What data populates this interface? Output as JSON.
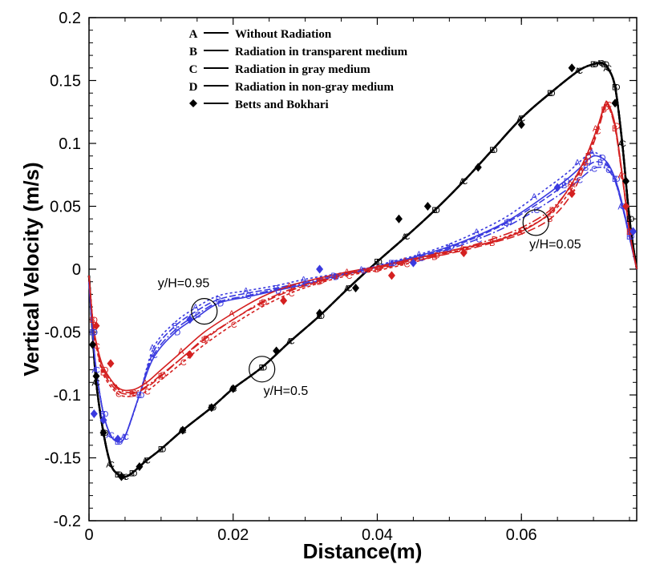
{
  "chart_data": {
    "type": "line",
    "title": "",
    "xlabel": "Distance(m)",
    "ylabel": "Vertical Velocity (m/s)",
    "xlim": [
      0,
      0.076
    ],
    "ylim": [
      -0.2,
      0.2
    ],
    "x_ticks": [
      0,
      0.02,
      0.04,
      0.06
    ],
    "x_tick_labels": [
      "0",
      "0.02",
      "0.04",
      "0.06"
    ],
    "y_ticks": [
      -0.2,
      -0.15,
      -0.1,
      -0.05,
      0,
      0.05,
      0.1,
      0.15,
      0.2
    ],
    "y_tick_labels": [
      "-0.2",
      "-0.15",
      "-0.1",
      "-0.05",
      "0",
      "0.05",
      "0.1",
      "0.15",
      "0.2"
    ],
    "grid": false,
    "legend": {
      "position": "top",
      "entries": [
        {
          "symbol": "A",
          "label": "Without Radiation"
        },
        {
          "symbol": "B",
          "label": "Radiation in transparent medium"
        },
        {
          "symbol": "C",
          "label": "Radiation in gray medium"
        },
        {
          "symbol": "D",
          "label": "Radiation in non-gray medium"
        },
        {
          "symbol": "◆",
          "label": "Betts and Bokhari"
        }
      ]
    },
    "annotations": [
      {
        "text": "y/H=0.95",
        "x": 0.016,
        "y": -0.0335
      },
      {
        "text": "y/H=0.5",
        "x": 0.024,
        "y": -0.0795
      },
      {
        "text": "y/H=0.05",
        "x": 0.062,
        "y": 0.037
      }
    ],
    "series": [
      {
        "name": "y/H=0.5 A",
        "group": "y/H=0.5",
        "marker": "A",
        "color": "#000000",
        "dash": "",
        "x": [
          0,
          0.0005,
          0.001,
          0.002,
          0.003,
          0.004,
          0.005,
          0.006,
          0.008,
          0.01,
          0.013,
          0.017,
          0.02,
          0.024,
          0.028,
          0.032,
          0.036,
          0.04,
          0.044,
          0.048,
          0.052,
          0.056,
          0.06,
          0.064,
          0.068,
          0.07,
          0.071,
          0.0715,
          0.072,
          0.073,
          0.074,
          0.075,
          0.076
        ],
        "y": [
          -0.005,
          -0.05,
          -0.09,
          -0.13,
          -0.155,
          -0.163,
          -0.165,
          -0.162,
          -0.152,
          -0.143,
          -0.128,
          -0.11,
          -0.095,
          -0.078,
          -0.057,
          -0.037,
          -0.015,
          0.006,
          0.026,
          0.047,
          0.07,
          0.095,
          0.12,
          0.14,
          0.158,
          0.163,
          0.164,
          0.163,
          0.16,
          0.145,
          0.1,
          0.04,
          0
        ]
      },
      {
        "name": "y/H=0.5 B",
        "group": "y/H=0.5",
        "marker": "B",
        "color": "#000000",
        "dash": "10,4",
        "x": [
          0,
          0.0005,
          0.001,
          0.002,
          0.003,
          0.004,
          0.005,
          0.006,
          0.008,
          0.01,
          0.013,
          0.017,
          0.02,
          0.024,
          0.028,
          0.032,
          0.036,
          0.04,
          0.044,
          0.048,
          0.052,
          0.056,
          0.06,
          0.064,
          0.068,
          0.07,
          0.071,
          0.0715,
          0.072,
          0.073,
          0.074,
          0.075,
          0.076
        ],
        "y": [
          -0.005,
          -0.05,
          -0.09,
          -0.13,
          -0.155,
          -0.163,
          -0.165,
          -0.162,
          -0.152,
          -0.143,
          -0.128,
          -0.11,
          -0.095,
          -0.078,
          -0.057,
          -0.037,
          -0.015,
          0.006,
          0.026,
          0.047,
          0.07,
          0.095,
          0.12,
          0.14,
          0.158,
          0.163,
          0.164,
          0.163,
          0.16,
          0.145,
          0.1,
          0.04,
          0
        ]
      },
      {
        "name": "y/H=0.5 C",
        "group": "y/H=0.5",
        "marker": "C",
        "color": "#000000",
        "dash": "4,3",
        "x": [
          0,
          0.0005,
          0.001,
          0.002,
          0.003,
          0.004,
          0.005,
          0.006,
          0.008,
          0.01,
          0.013,
          0.017,
          0.02,
          0.024,
          0.028,
          0.032,
          0.036,
          0.04,
          0.044,
          0.048,
          0.052,
          0.056,
          0.06,
          0.064,
          0.068,
          0.07,
          0.071,
          0.0715,
          0.072,
          0.073,
          0.074,
          0.075,
          0.076
        ],
        "y": [
          -0.005,
          -0.05,
          -0.09,
          -0.13,
          -0.155,
          -0.163,
          -0.165,
          -0.162,
          -0.152,
          -0.143,
          -0.128,
          -0.11,
          -0.095,
          -0.078,
          -0.057,
          -0.037,
          -0.015,
          0.006,
          0.026,
          0.047,
          0.07,
          0.095,
          0.12,
          0.14,
          0.158,
          0.163,
          0.164,
          0.163,
          0.16,
          0.145,
          0.1,
          0.04,
          0
        ]
      },
      {
        "name": "y/H=0.5 D",
        "group": "y/H=0.5",
        "marker": "D",
        "color": "#000000",
        "dash": "12,3,2,3",
        "x": [
          0,
          0.0005,
          0.001,
          0.002,
          0.003,
          0.004,
          0.005,
          0.006,
          0.008,
          0.01,
          0.013,
          0.017,
          0.02,
          0.024,
          0.028,
          0.032,
          0.036,
          0.04,
          0.044,
          0.048,
          0.052,
          0.056,
          0.06,
          0.064,
          0.068,
          0.07,
          0.071,
          0.0715,
          0.072,
          0.073,
          0.074,
          0.075,
          0.076
        ],
        "y": [
          -0.005,
          -0.05,
          -0.09,
          -0.13,
          -0.155,
          -0.163,
          -0.165,
          -0.162,
          -0.152,
          -0.143,
          -0.128,
          -0.11,
          -0.095,
          -0.078,
          -0.057,
          -0.037,
          -0.015,
          0.006,
          0.026,
          0.047,
          0.07,
          0.095,
          0.12,
          0.14,
          0.158,
          0.163,
          0.164,
          0.163,
          0.16,
          0.145,
          0.1,
          0.04,
          0
        ]
      },
      {
        "name": "y/H=0.95 A",
        "group": "y/H=0.95",
        "marker": "A",
        "color": "#3a3adf",
        "dash": "3,3",
        "x": [
          0,
          0.0005,
          0.001,
          0.002,
          0.003,
          0.004,
          0.005,
          0.007,
          0.009,
          0.012,
          0.015,
          0.018,
          0.022,
          0.026,
          0.03,
          0.034,
          0.038,
          0.042,
          0.046,
          0.05,
          0.054,
          0.058,
          0.062,
          0.066,
          0.068,
          0.069,
          0.07,
          0.071,
          0.072,
          0.073,
          0.074,
          0.075,
          0.076
        ],
        "y": [
          -0.01,
          -0.05,
          -0.08,
          -0.115,
          -0.132,
          -0.137,
          -0.133,
          -0.1,
          -0.062,
          -0.042,
          -0.03,
          -0.021,
          -0.017,
          -0.013,
          -0.008,
          -0.004,
          0.0,
          0.006,
          0.012,
          0.02,
          0.03,
          0.042,
          0.058,
          0.075,
          0.085,
          0.09,
          0.093,
          0.09,
          0.083,
          0.07,
          0.05,
          0.025,
          0
        ]
      },
      {
        "name": "y/H=0.95 B",
        "group": "y/H=0.95",
        "marker": "B",
        "color": "#3a3adf",
        "dash": "8,3",
        "x": [
          0,
          0.0005,
          0.001,
          0.002,
          0.003,
          0.004,
          0.005,
          0.007,
          0.009,
          0.012,
          0.015,
          0.018,
          0.022,
          0.026,
          0.03,
          0.034,
          0.038,
          0.042,
          0.046,
          0.05,
          0.054,
          0.058,
          0.062,
          0.066,
          0.068,
          0.069,
          0.07,
          0.071,
          0.072,
          0.073,
          0.074,
          0.075,
          0.076
        ],
        "y": [
          -0.01,
          -0.05,
          -0.08,
          -0.115,
          -0.132,
          -0.137,
          -0.133,
          -0.1,
          -0.065,
          -0.045,
          -0.033,
          -0.024,
          -0.019,
          -0.015,
          -0.01,
          -0.005,
          -0.001,
          0.005,
          0.01,
          0.017,
          0.026,
          0.037,
          0.051,
          0.067,
          0.076,
          0.081,
          0.085,
          0.085,
          0.082,
          0.072,
          0.052,
          0.026,
          0
        ]
      },
      {
        "name": "y/H=0.95 C",
        "group": "y/H=0.95",
        "marker": "C",
        "color": "#3a3adf",
        "dash": "10,3,2,3",
        "x": [
          0,
          0.0005,
          0.001,
          0.002,
          0.003,
          0.004,
          0.005,
          0.007,
          0.009,
          0.012,
          0.015,
          0.018,
          0.022,
          0.026,
          0.03,
          0.034,
          0.038,
          0.042,
          0.046,
          0.05,
          0.054,
          0.058,
          0.062,
          0.066,
          0.068,
          0.069,
          0.07,
          0.071,
          0.072,
          0.073,
          0.074,
          0.075,
          0.076
        ],
        "y": [
          -0.01,
          -0.05,
          -0.08,
          -0.115,
          -0.132,
          -0.137,
          -0.133,
          -0.1,
          -0.068,
          -0.048,
          -0.036,
          -0.026,
          -0.021,
          -0.016,
          -0.011,
          -0.006,
          -0.001,
          0.004,
          0.009,
          0.016,
          0.024,
          0.034,
          0.047,
          0.062,
          0.071,
          0.076,
          0.08,
          0.081,
          0.079,
          0.07,
          0.05,
          0.025,
          0
        ]
      },
      {
        "name": "y/H=0.95 D",
        "group": "y/H=0.95",
        "marker": "D",
        "color": "#3a3adf",
        "dash": "",
        "x": [
          0,
          0.0005,
          0.001,
          0.002,
          0.003,
          0.004,
          0.005,
          0.007,
          0.009,
          0.012,
          0.015,
          0.018,
          0.022,
          0.026,
          0.03,
          0.034,
          0.038,
          0.042,
          0.046,
          0.05,
          0.054,
          0.058,
          0.062,
          0.066,
          0.068,
          0.069,
          0.07,
          0.071,
          0.072,
          0.073,
          0.074,
          0.075,
          0.076
        ],
        "y": [
          -0.01,
          -0.05,
          -0.08,
          -0.115,
          -0.132,
          -0.137,
          -0.133,
          -0.1,
          -0.07,
          -0.05,
          -0.038,
          -0.027,
          -0.022,
          -0.017,
          -0.012,
          -0.006,
          -0.001,
          0.005,
          0.011,
          0.018,
          0.027,
          0.038,
          0.053,
          0.07,
          0.08,
          0.086,
          0.09,
          0.089,
          0.084,
          0.072,
          0.052,
          0.026,
          0
        ]
      },
      {
        "name": "y/H=0.05 A",
        "group": "y/H=0.05",
        "marker": "A",
        "color": "#d42020",
        "dash": "",
        "x": [
          0,
          0.0005,
          0.001,
          0.002,
          0.004,
          0.006,
          0.008,
          0.01,
          0.013,
          0.016,
          0.02,
          0.024,
          0.028,
          0.032,
          0.036,
          0.04,
          0.044,
          0.048,
          0.052,
          0.056,
          0.06,
          0.064,
          0.067,
          0.069,
          0.0705,
          0.0715,
          0.072,
          0.073,
          0.074,
          0.075,
          0.076
        ],
        "y": [
          -0.005,
          -0.04,
          -0.058,
          -0.078,
          -0.094,
          -0.096,
          -0.09,
          -0.08,
          -0.065,
          -0.05,
          -0.035,
          -0.022,
          -0.013,
          -0.007,
          -0.002,
          0.002,
          0.007,
          0.012,
          0.017,
          0.022,
          0.03,
          0.045,
          0.068,
          0.09,
          0.112,
          0.13,
          0.132,
          0.115,
          0.075,
          0.03,
          0
        ]
      },
      {
        "name": "y/H=0.05 B",
        "group": "y/H=0.05",
        "marker": "B",
        "color": "#d42020",
        "dash": "10,4",
        "x": [
          0,
          0.0005,
          0.001,
          0.002,
          0.004,
          0.006,
          0.008,
          0.01,
          0.013,
          0.016,
          0.02,
          0.024,
          0.028,
          0.032,
          0.036,
          0.04,
          0.044,
          0.048,
          0.052,
          0.056,
          0.06,
          0.064,
          0.067,
          0.069,
          0.0705,
          0.0715,
          0.072,
          0.073,
          0.074,
          0.075,
          0.076
        ],
        "y": [
          -0.005,
          -0.04,
          -0.06,
          -0.082,
          -0.097,
          -0.099,
          -0.094,
          -0.085,
          -0.07,
          -0.056,
          -0.04,
          -0.027,
          -0.017,
          -0.01,
          -0.004,
          0.0,
          0.005,
          0.01,
          0.015,
          0.021,
          0.028,
          0.04,
          0.06,
          0.085,
          0.108,
          0.127,
          0.13,
          0.112,
          0.073,
          0.03,
          0
        ]
      },
      {
        "name": "y/H=0.05 C",
        "group": "y/H=0.05",
        "marker": "C",
        "color": "#d42020",
        "dash": "4,3",
        "x": [
          0,
          0.0005,
          0.001,
          0.002,
          0.004,
          0.006,
          0.008,
          0.01,
          0.013,
          0.016,
          0.02,
          0.024,
          0.028,
          0.032,
          0.036,
          0.04,
          0.044,
          0.048,
          0.052,
          0.056,
          0.06,
          0.064,
          0.067,
          0.069,
          0.0705,
          0.0715,
          0.072,
          0.073,
          0.074,
          0.075,
          0.076
        ],
        "y": [
          -0.005,
          -0.04,
          -0.061,
          -0.084,
          -0.099,
          -0.101,
          -0.097,
          -0.088,
          -0.074,
          -0.06,
          -0.044,
          -0.03,
          -0.019,
          -0.011,
          -0.005,
          -0.001,
          0.004,
          0.01,
          0.016,
          0.022,
          0.031,
          0.044,
          0.064,
          0.088,
          0.11,
          0.128,
          0.131,
          0.113,
          0.074,
          0.03,
          0
        ]
      },
      {
        "name": "y/H=0.05 D",
        "group": "y/H=0.05",
        "marker": "D",
        "color": "#d42020",
        "dash": "12,3,2,3",
        "x": [
          0,
          0.0005,
          0.001,
          0.002,
          0.004,
          0.006,
          0.008,
          0.01,
          0.013,
          0.016,
          0.02,
          0.024,
          0.028,
          0.032,
          0.036,
          0.04,
          0.044,
          0.048,
          0.052,
          0.056,
          0.06,
          0.064,
          0.067,
          0.069,
          0.0705,
          0.0715,
          0.072,
          0.073,
          0.074,
          0.075,
          0.076
        ],
        "y": [
          -0.005,
          -0.04,
          -0.059,
          -0.08,
          -0.095,
          -0.098,
          -0.093,
          -0.084,
          -0.07,
          -0.055,
          -0.04,
          -0.026,
          -0.016,
          -0.009,
          -0.003,
          0.001,
          0.006,
          0.011,
          0.017,
          0.024,
          0.033,
          0.047,
          0.067,
          0.09,
          0.112,
          0.129,
          0.132,
          0.114,
          0.075,
          0.03,
          0
        ]
      }
    ],
    "experimental": [
      {
        "name": "Betts and Bokhari y/H=0.5",
        "group": "y/H=0.5",
        "color": "#000000",
        "x": [
          0.0005,
          0.001,
          0.002,
          0.0045,
          0.007,
          0.013,
          0.017,
          0.02,
          0.026,
          0.032,
          0.037,
          0.043,
          0.047,
          0.054,
          0.06,
          0.067,
          0.073,
          0.0745
        ],
        "y": [
          -0.06,
          -0.085,
          -0.13,
          -0.165,
          -0.157,
          -0.128,
          -0.11,
          -0.095,
          -0.065,
          -0.035,
          -0.015,
          0.04,
          0.05,
          0.081,
          0.115,
          0.16,
          0.132,
          0.07
        ]
      },
      {
        "name": "Betts and Bokhari y/H=0.95",
        "group": "y/H=0.95",
        "color": "#3a3adf",
        "x": [
          0.0007,
          0.002,
          0.004,
          0.014,
          0.032,
          0.045,
          0.065,
          0.0755
        ],
        "y": [
          -0.115,
          -0.12,
          -0.135,
          -0.04,
          -0.0,
          0.005,
          0.065,
          0.03
        ]
      },
      {
        "name": "Betts and Bokhari y/H=0.05",
        "group": "y/H=0.05",
        "color": "#d42020",
        "x": [
          0.001,
          0.003,
          0.014,
          0.027,
          0.042,
          0.052,
          0.067,
          0.0745
        ],
        "y": [
          -0.045,
          -0.075,
          -0.068,
          -0.025,
          -0.005,
          0.013,
          0.06,
          0.05
        ]
      }
    ]
  }
}
